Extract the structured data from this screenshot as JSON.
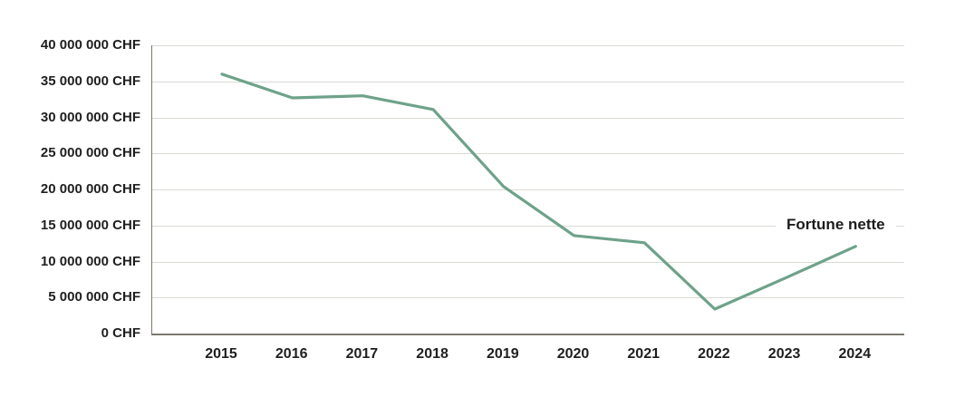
{
  "chart_data": {
    "type": "line",
    "title": "",
    "xlabel": "",
    "ylabel": "CHF",
    "categories": [
      "2015",
      "2016",
      "2017",
      "2018",
      "2019",
      "2020",
      "2021",
      "2022",
      "2023",
      "2024"
    ],
    "series": [
      {
        "name": "Fortune nette",
        "color": "#6EA28A",
        "values": [
          36000000,
          32700000,
          33000000,
          31100000,
          20400000,
          13600000,
          12600000,
          3400000,
          7700000,
          12100000
        ]
      }
    ],
    "ylim": [
      0,
      40000000
    ],
    "ytick_step": 5000000,
    "ytick_labels_top_to_bottom": [
      "40 000 000 CHF",
      "35 000 000 CHF",
      "30 000 000 CHF",
      "25 000 000 CHF",
      "20 000 000 CHF",
      "15 000 000 CHF",
      "10 000 000 CHF",
      "5 000 000 CHF",
      "0 CHF"
    ],
    "grid": true,
    "legend_position": "inline-label-right-of-line"
  },
  "colors": {
    "line": "#6EA28A",
    "gridline": "#D9D9D4",
    "axis": "#7C786E",
    "text": "#1F1F1F",
    "background": "#FFFFFF"
  }
}
